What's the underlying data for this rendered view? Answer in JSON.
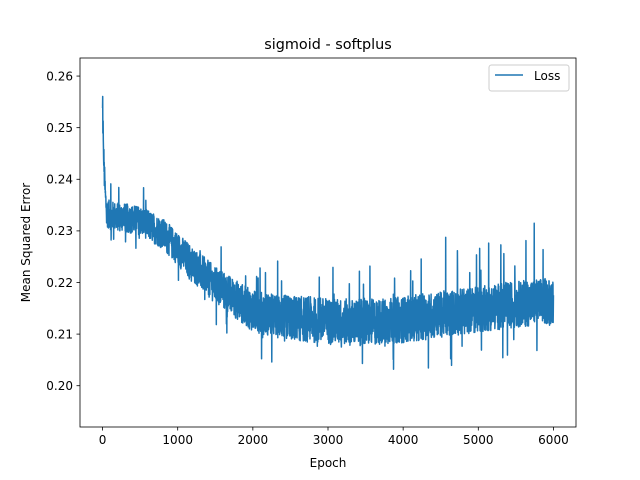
{
  "chart_data": {
    "type": "line",
    "title": "sigmoid - softplus",
    "xlabel": "Epoch",
    "ylabel": "Mean Squared Error",
    "xlim": [
      -300,
      6300
    ],
    "ylim": [
      0.192,
      0.2635
    ],
    "xticks": [
      0,
      1000,
      2000,
      3000,
      4000,
      5000,
      6000
    ],
    "xtick_labels": [
      "0",
      "1000",
      "2000",
      "3000",
      "4000",
      "5000",
      "6000"
    ],
    "yticks": [
      0.2,
      0.21,
      0.22,
      0.23,
      0.24,
      0.25,
      0.26
    ],
    "ytick_labels": [
      "0.20",
      "0.21",
      "0.22",
      "0.23",
      "0.24",
      "0.25",
      "0.26"
    ],
    "grid": false,
    "legend_position": "top-right",
    "series": [
      {
        "name": "Loss",
        "color": "#1f77b4",
        "noisy": true,
        "x": [
          0,
          10,
          20,
          40,
          60,
          100,
          300,
          500,
          800,
          1000,
          1200,
          1500,
          1800,
          2000,
          2300,
          2600,
          3000,
          3500,
          4000,
          4500,
          5000,
          5500,
          6000
        ],
        "y": [
          0.2515,
          0.2475,
          0.242,
          0.236,
          0.2335,
          0.233,
          0.2325,
          0.232,
          0.2295,
          0.2265,
          0.2235,
          0.2195,
          0.2165,
          0.2145,
          0.2135,
          0.213,
          0.2125,
          0.2122,
          0.2128,
          0.2138,
          0.2148,
          0.2158,
          0.2165
        ],
        "band": [
          0.004,
          0.004,
          0.003,
          0.0028,
          0.0028,
          0.0028,
          0.0028,
          0.0028,
          0.003,
          0.0032,
          0.0034,
          0.0036,
          0.0038,
          0.004,
          0.0042,
          0.0044,
          0.0045,
          0.0045,
          0.0045,
          0.0045,
          0.0045,
          0.0045,
          0.0045
        ]
      }
    ]
  }
}
